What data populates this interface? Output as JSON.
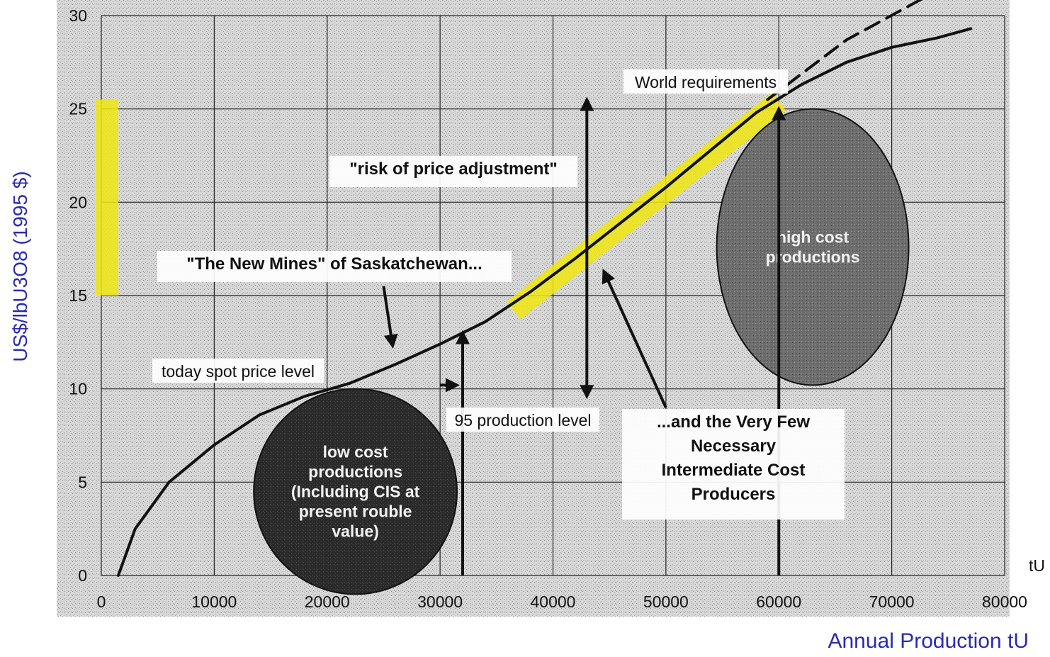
{
  "chart_data": {
    "type": "line",
    "title": "",
    "xlabel": "Annual Production tU",
    "ylabel": "US$/lbU3O8 (1995 $)",
    "x_unit_label": "tU",
    "xlim": [
      0,
      80000
    ],
    "ylim": [
      0,
      30
    ],
    "x_ticks": [
      "0",
      "10000",
      "20000",
      "30000",
      "40000",
      "50000",
      "60000",
      "70000",
      "80000"
    ],
    "y_ticks": [
      "0",
      "5",
      "10",
      "15",
      "20",
      "25",
      "30"
    ],
    "grid": true,
    "series": [
      {
        "style": "solid",
        "x": [
          1500,
          3000,
          6000,
          10000,
          14000,
          18000,
          22000,
          26000,
          30000,
          34000,
          38000,
          42000,
          46000,
          50000,
          54000,
          58000,
          62000,
          66000,
          70000,
          74000,
          77000
        ],
        "y": [
          0,
          2.5,
          5,
          7,
          8.6,
          9.6,
          10.3,
          11.3,
          12.4,
          13.6,
          15.2,
          17,
          18.9,
          20.8,
          22.8,
          24.8,
          26.3,
          27.5,
          28.3,
          28.8,
          29.3
        ]
      },
      {
        "style": "dashed",
        "x": [
          59000,
          66000,
          73000
        ],
        "y": [
          25.5,
          28.7,
          31
        ]
      }
    ],
    "highlights": [
      {
        "type": "price-band",
        "x": 0,
        "y_range": [
          15,
          25.5
        ],
        "color": "#f0e60f"
      },
      {
        "type": "segment",
        "from": [
          36500,
          14.2
        ],
        "to": [
          60000,
          25.4
        ],
        "color": "#f0e60f"
      }
    ],
    "ellipses": [
      {
        "name": "low-cost",
        "cx": 22500,
        "cy": 4.5,
        "rx": 9000,
        "ry": 5.5,
        "lines": [
          "low cost",
          "productions",
          "(Including CIS at",
          "present rouble",
          "value)"
        ]
      },
      {
        "name": "high-cost",
        "cx": 63000,
        "cy": 17.6,
        "rx": 8500,
        "ry": 7.4,
        "lines": [
          "high cost",
          "productions"
        ]
      }
    ],
    "annotations": {
      "world_requirements": "World requirements",
      "risk": "\"risk of price adjustment\"",
      "new_mines": "\"The New Mines\" of Saskatchewan...",
      "spot_price": "today spot price level",
      "production_95": "95 production level",
      "very_few": [
        "...and the Very Few",
        "Necessary",
        "Intermediate Cost",
        "Producers"
      ]
    }
  }
}
